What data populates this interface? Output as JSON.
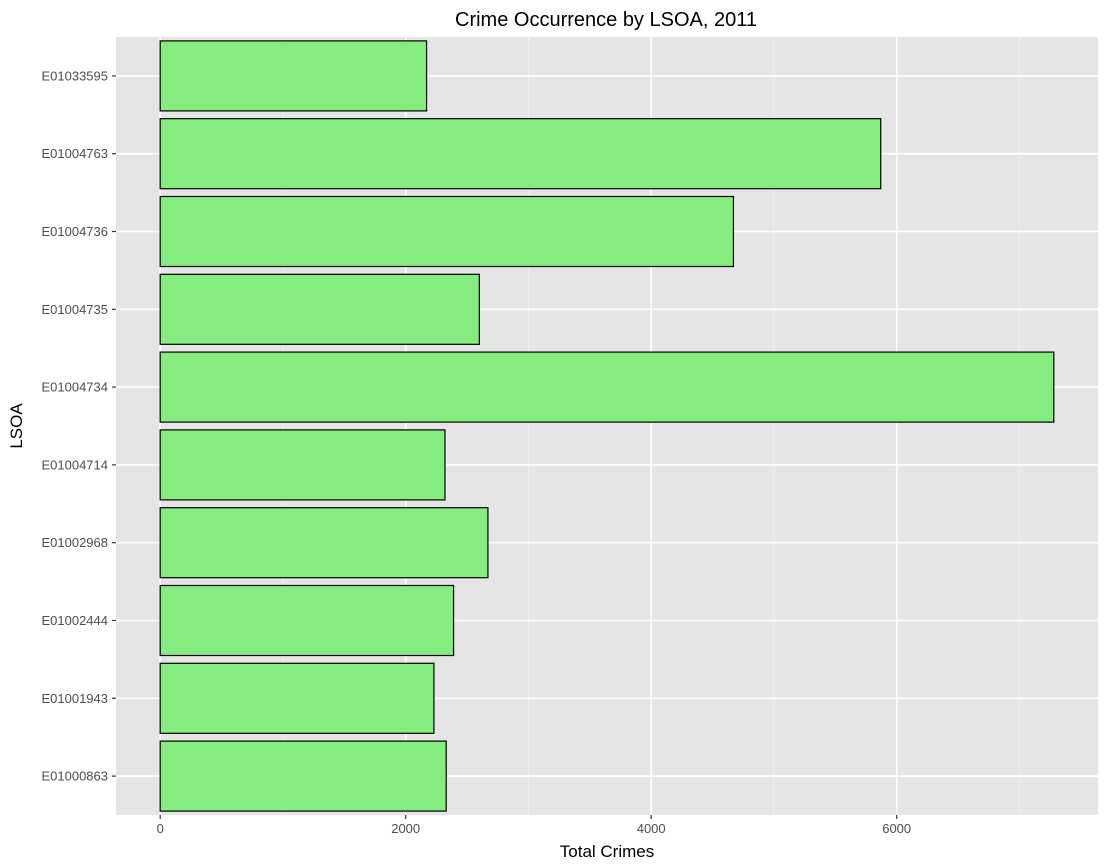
{
  "chart_data": {
    "type": "bar",
    "orientation": "horizontal",
    "title": "Crime Occurrence by LSOA, 2011",
    "xlabel": "Total Crimes",
    "ylabel": "LSOA",
    "categories": [
      "E01000863",
      "E01001943",
      "E01002444",
      "E01002968",
      "E01004714",
      "E01004734",
      "E01004735",
      "E01004736",
      "E01004763",
      "E01033595"
    ],
    "values": [
      2330,
      2230,
      2390,
      2670,
      2320,
      7280,
      2600,
      4670,
      5870,
      2170
    ],
    "xlim": [
      -360,
      7640
    ],
    "x_ticks": [
      0,
      2000,
      4000,
      6000
    ],
    "x_tick_labels": [
      "0",
      "2000",
      "4000",
      "6000"
    ],
    "grid": true,
    "colors": {
      "bar_fill": "#85ed80",
      "bar_stroke": "#000000",
      "panel_background": "#e5e5e5",
      "grid": "#ffffff"
    }
  }
}
